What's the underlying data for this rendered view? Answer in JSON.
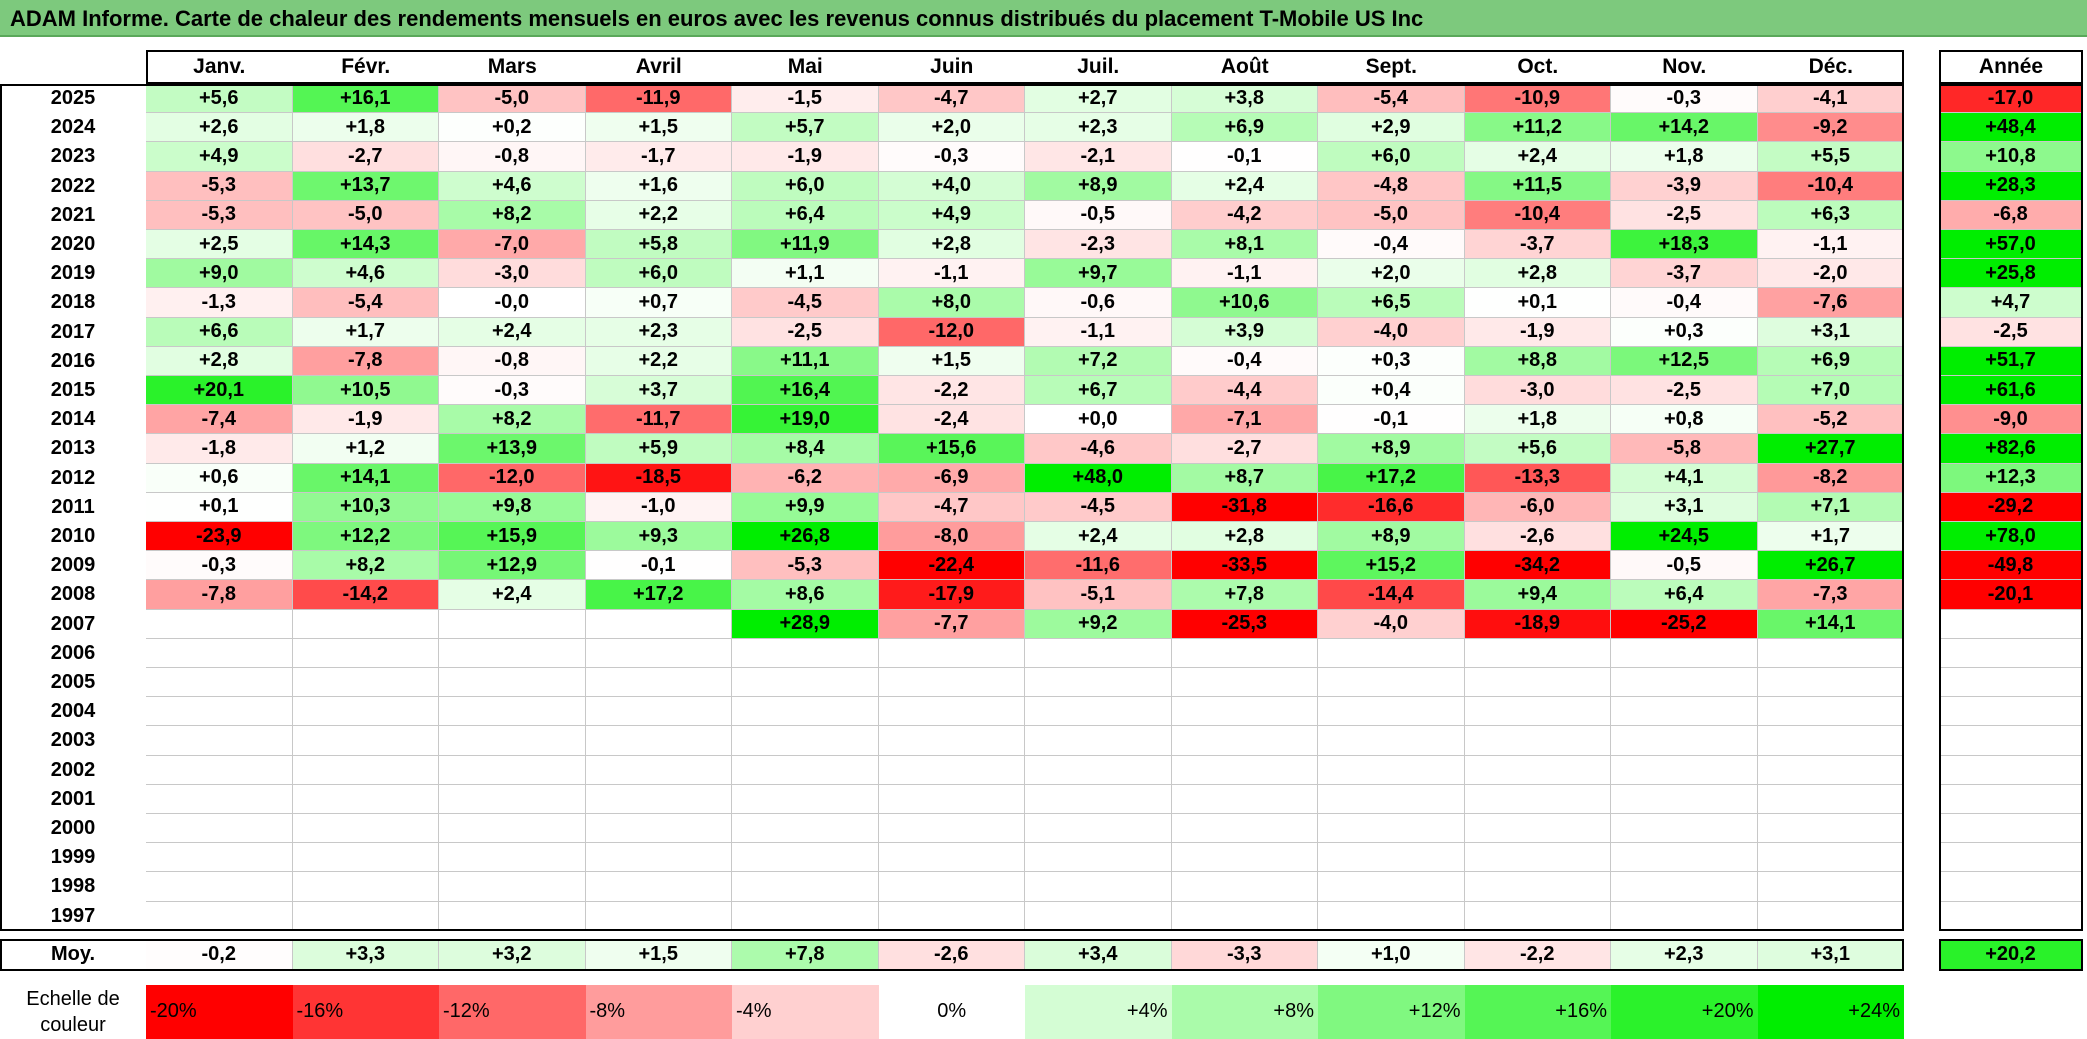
{
  "title": "ADAM Informe. Carte de chaleur des rendements mensuels en euros avec les revenus connus distribués du placement T-Mobile US Inc",
  "chart_data": {
    "type": "heatmap",
    "columns": [
      "Janv.",
      "Févr.",
      "Mars",
      "Avril",
      "Mai",
      "Juin",
      "Juil.",
      "Août",
      "Sept.",
      "Oct.",
      "Nov.",
      "Déc."
    ],
    "year_column_label": "Année",
    "average_row_label": "Moy.",
    "rows": [
      {
        "year": "2025",
        "months": [
          "+5,6",
          "+16,1",
          "-5,0",
          "-11,9",
          "-1,5",
          "-4,7",
          "+2,7",
          "+3,8",
          "-5,4",
          "-10,9",
          "-0,3",
          "-4,1"
        ],
        "annual": "-17,0"
      },
      {
        "year": "2024",
        "months": [
          "+2,6",
          "+1,8",
          "+0,2",
          "+1,5",
          "+5,7",
          "+2,0",
          "+2,3",
          "+6,9",
          "+2,9",
          "+11,2",
          "+14,2",
          "-9,2"
        ],
        "annual": "+48,4"
      },
      {
        "year": "2023",
        "months": [
          "+4,9",
          "-2,7",
          "-0,8",
          "-1,7",
          "-1,9",
          "-0,3",
          "-2,1",
          "-0,1",
          "+6,0",
          "+2,4",
          "+1,8",
          "+5,5"
        ],
        "annual": "+10,8"
      },
      {
        "year": "2022",
        "months": [
          "-5,3",
          "+13,7",
          "+4,6",
          "+1,6",
          "+6,0",
          "+4,0",
          "+8,9",
          "+2,4",
          "-4,8",
          "+11,5",
          "-3,9",
          "-10,4"
        ],
        "annual": "+28,3"
      },
      {
        "year": "2021",
        "months": [
          "-5,3",
          "-5,0",
          "+8,2",
          "+2,2",
          "+6,4",
          "+4,9",
          "-0,5",
          "-4,2",
          "-5,0",
          "-10,4",
          "-2,5",
          "+6,3"
        ],
        "annual": "-6,8"
      },
      {
        "year": "2020",
        "months": [
          "+2,5",
          "+14,3",
          "-7,0",
          "+5,8",
          "+11,9",
          "+2,8",
          "-2,3",
          "+8,1",
          "-0,4",
          "-3,7",
          "+18,3",
          "-1,1"
        ],
        "annual": "+57,0"
      },
      {
        "year": "2019",
        "months": [
          "+9,0",
          "+4,6",
          "-3,0",
          "+6,0",
          "+1,1",
          "-1,1",
          "+9,7",
          "-1,1",
          "+2,0",
          "+2,8",
          "-3,7",
          "-2,0"
        ],
        "annual": "+25,8"
      },
      {
        "year": "2018",
        "months": [
          "-1,3",
          "-5,4",
          "-0,0",
          "+0,7",
          "-4,5",
          "+8,0",
          "-0,6",
          "+10,6",
          "+6,5",
          "+0,1",
          "-0,4",
          "-7,6"
        ],
        "annual": "+4,7"
      },
      {
        "year": "2017",
        "months": [
          "+6,6",
          "+1,7",
          "+2,4",
          "+2,3",
          "-2,5",
          "-12,0",
          "-1,1",
          "+3,9",
          "-4,0",
          "-1,9",
          "+0,3",
          "+3,1"
        ],
        "annual": "-2,5"
      },
      {
        "year": "2016",
        "months": [
          "+2,8",
          "-7,8",
          "-0,8",
          "+2,2",
          "+11,1",
          "+1,5",
          "+7,2",
          "-0,4",
          "+0,3",
          "+8,8",
          "+12,5",
          "+6,9"
        ],
        "annual": "+51,7"
      },
      {
        "year": "2015",
        "months": [
          "+20,1",
          "+10,5",
          "-0,3",
          "+3,7",
          "+16,4",
          "-2,2",
          "+6,7",
          "-4,4",
          "+0,4",
          "-3,0",
          "-2,5",
          "+7,0"
        ],
        "annual": "+61,6"
      },
      {
        "year": "2014",
        "months": [
          "-7,4",
          "-1,9",
          "+8,2",
          "-11,7",
          "+19,0",
          "-2,4",
          "+0,0",
          "-7,1",
          "-0,1",
          "+1,8",
          "+0,8",
          "-5,2"
        ],
        "annual": "-9,0"
      },
      {
        "year": "2013",
        "months": [
          "-1,8",
          "+1,2",
          "+13,9",
          "+5,9",
          "+8,4",
          "+15,6",
          "-4,6",
          "-2,7",
          "+8,9",
          "+5,6",
          "-5,8",
          "+27,7"
        ],
        "annual": "+82,6"
      },
      {
        "year": "2012",
        "months": [
          "+0,6",
          "+14,1",
          "-12,0",
          "-18,5",
          "-6,2",
          "-6,9",
          "+48,0",
          "+8,7",
          "+17,2",
          "-13,3",
          "+4,1",
          "-8,2"
        ],
        "annual": "+12,3"
      },
      {
        "year": "2011",
        "months": [
          "+0,1",
          "+10,3",
          "+9,8",
          "-1,0",
          "+9,9",
          "-4,7",
          "-4,5",
          "-31,8",
          "-16,6",
          "-6,0",
          "+3,1",
          "+7,1"
        ],
        "annual": "-29,2"
      },
      {
        "year": "2010",
        "months": [
          "-23,9",
          "+12,2",
          "+15,9",
          "+9,3",
          "+26,8",
          "-8,0",
          "+2,4",
          "+2,8",
          "+8,9",
          "-2,6",
          "+24,5",
          "+1,7"
        ],
        "annual": "+78,0"
      },
      {
        "year": "2009",
        "months": [
          "-0,3",
          "+8,2",
          "+12,9",
          "-0,1",
          "-5,3",
          "-22,4",
          "-11,6",
          "-33,5",
          "+15,2",
          "-34,2",
          "-0,5",
          "+26,7"
        ],
        "annual": "-49,8"
      },
      {
        "year": "2008",
        "months": [
          "-7,8",
          "-14,2",
          "+2,4",
          "+17,2",
          "+8,6",
          "-17,9",
          "-5,1",
          "+7,8",
          "-14,4",
          "+9,4",
          "+6,4",
          "-7,3"
        ],
        "annual": "-20,1"
      },
      {
        "year": "2007",
        "months": [
          "",
          "",
          "",
          "",
          "+28,9",
          "-7,7",
          "+9,2",
          "-25,3",
          "-4,0",
          "-18,9",
          "-25,2",
          "+14,1"
        ],
        "annual": ""
      },
      {
        "year": "2006",
        "months": [
          "",
          "",
          "",
          "",
          "",
          "",
          "",
          "",
          "",
          "",
          "",
          ""
        ],
        "annual": ""
      },
      {
        "year": "2005",
        "months": [
          "",
          "",
          "",
          "",
          "",
          "",
          "",
          "",
          "",
          "",
          "",
          ""
        ],
        "annual": ""
      },
      {
        "year": "2004",
        "months": [
          "",
          "",
          "",
          "",
          "",
          "",
          "",
          "",
          "",
          "",
          "",
          ""
        ],
        "annual": ""
      },
      {
        "year": "2003",
        "months": [
          "",
          "",
          "",
          "",
          "",
          "",
          "",
          "",
          "",
          "",
          "",
          ""
        ],
        "annual": ""
      },
      {
        "year": "2002",
        "months": [
          "",
          "",
          "",
          "",
          "",
          "",
          "",
          "",
          "",
          "",
          "",
          ""
        ],
        "annual": ""
      },
      {
        "year": "2001",
        "months": [
          "",
          "",
          "",
          "",
          "",
          "",
          "",
          "",
          "",
          "",
          "",
          ""
        ],
        "annual": ""
      },
      {
        "year": "2000",
        "months": [
          "",
          "",
          "",
          "",
          "",
          "",
          "",
          "",
          "",
          "",
          "",
          ""
        ],
        "annual": ""
      },
      {
        "year": "1999",
        "months": [
          "",
          "",
          "",
          "",
          "",
          "",
          "",
          "",
          "",
          "",
          "",
          ""
        ],
        "annual": ""
      },
      {
        "year": "1998",
        "months": [
          "",
          "",
          "",
          "",
          "",
          "",
          "",
          "",
          "",
          "",
          "",
          ""
        ],
        "annual": ""
      },
      {
        "year": "1997",
        "months": [
          "",
          "",
          "",
          "",
          "",
          "",
          "",
          "",
          "",
          "",
          "",
          ""
        ],
        "annual": ""
      }
    ],
    "average": {
      "months": [
        "-0,2",
        "+3,3",
        "+3,2",
        "+1,5",
        "+7,8",
        "-2,6",
        "+3,4",
        "-3,3",
        "+1,0",
        "-2,2",
        "+2,3",
        "+3,1"
      ],
      "annual": "+20,2"
    },
    "color_scale": {
      "label": "Echelle de couleur",
      "steps": [
        {
          "label": "-20%",
          "value": -20,
          "color": "#ff0000"
        },
        {
          "label": "-16%",
          "value": -16,
          "color": "#ff3434"
        },
        {
          "label": "-12%",
          "value": -12,
          "color": "#ff6868"
        },
        {
          "label": "-8%",
          "value": -8,
          "color": "#ff9c9c"
        },
        {
          "label": "-4%",
          "value": -4,
          "color": "#ffd0d0"
        },
        {
          "label": "0%",
          "value": 0,
          "color": "#ffffff"
        },
        {
          "label": "+4%",
          "value": 4,
          "color": "#d4fdd4"
        },
        {
          "label": "+8%",
          "value": 8,
          "color": "#aafbaa"
        },
        {
          "label": "+12%",
          "value": 12,
          "color": "#80f880"
        },
        {
          "label": "+16%",
          "value": 16,
          "color": "#55f555"
        },
        {
          "label": "+20%",
          "value": 20,
          "color": "#2bf22b"
        },
        {
          "label": "+24%",
          "value": 24,
          "color": "#00ee00"
        }
      ]
    }
  }
}
